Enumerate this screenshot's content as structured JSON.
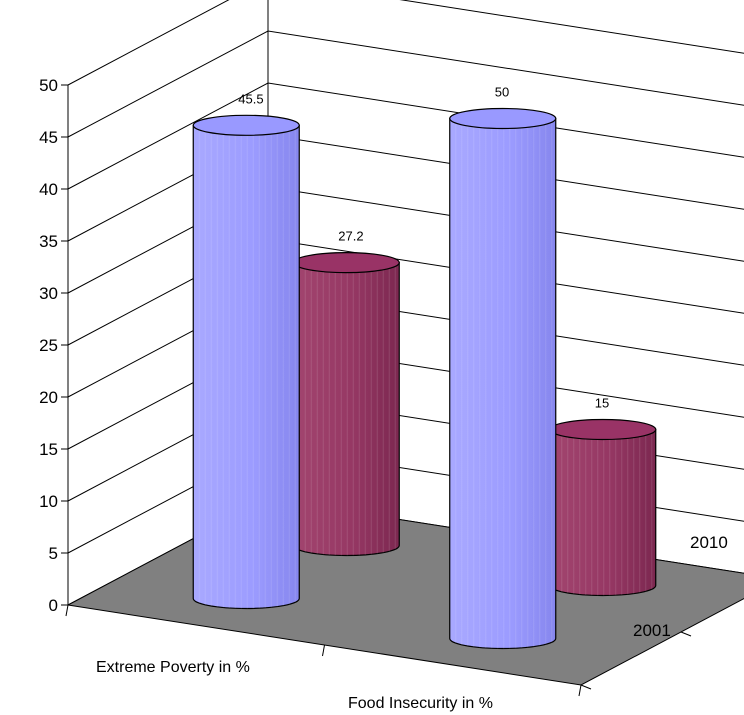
{
  "chart_data": {
    "type": "bar",
    "style": "3d-cylinder",
    "categories": [
      "Extreme Poverty in %",
      "Food Insecurity in %"
    ],
    "depth_categories": [
      "2001",
      "2010"
    ],
    "series": [
      {
        "name": "2001",
        "values": [
          45.5,
          50
        ],
        "color": "#9999ff"
      },
      {
        "name": "2010",
        "values": [
          27.2,
          15
        ],
        "color": "#993366"
      }
    ],
    "ylim": [
      0,
      50
    ],
    "yticks": [
      "0",
      "5",
      "10",
      "15",
      "20",
      "25",
      "30",
      "35",
      "40",
      "45",
      "50"
    ],
    "grid": true,
    "floor_color": "#808080"
  }
}
